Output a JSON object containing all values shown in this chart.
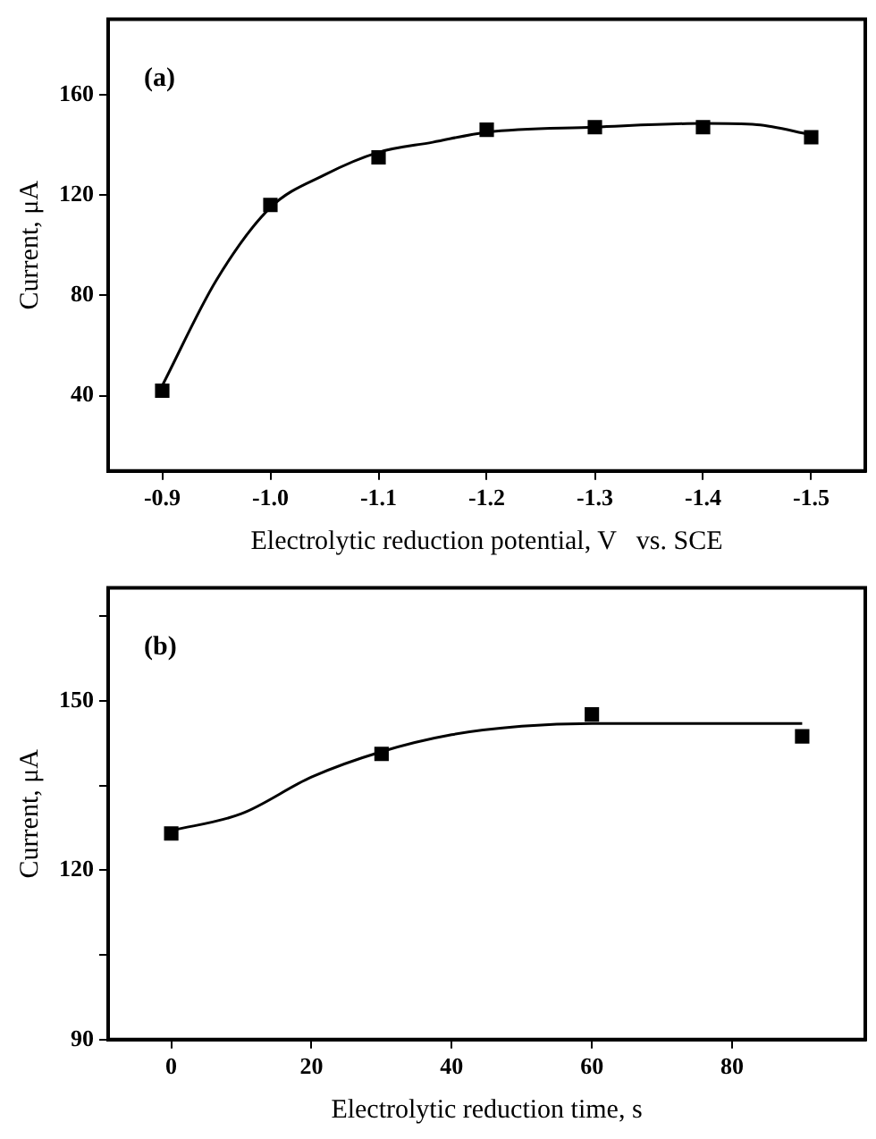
{
  "chart_data": [
    {
      "type": "scatter",
      "xlabel": "Electrolytic reduction potential, V   vs. SCE",
      "ylabel": "Current, μA",
      "annotations": [
        "(a)"
      ],
      "xlim": [
        -0.85,
        -1.55
      ],
      "xticks": [
        -0.9,
        {
          "value": -1,
          "label": "-1.0"
        },
        -1.1,
        -1.2,
        -1.3,
        -1.4,
        -1.5
      ],
      "ylim": [
        10,
        190
      ],
      "yticks": [
        40,
        80,
        120,
        160
      ],
      "grid": false,
      "legend": false,
      "series": [
        {
          "marker": "square",
          "color": "#000000",
          "x": [
            -0.9,
            -1.0,
            -1.1,
            -1.2,
            -1.3,
            -1.4,
            -1.5
          ],
          "values": [
            42,
            116,
            135,
            146,
            147,
            147,
            143
          ]
        },
        {
          "type": "line",
          "marker": "none",
          "line_style": "solid",
          "color": "#000000",
          "x": [
            -0.9,
            -0.95,
            -1.0,
            -1.05,
            -1.1,
            -1.15,
            -1.2,
            -1.3,
            -1.4,
            -1.45,
            -1.5
          ],
          "values": [
            44,
            86,
            115,
            128,
            137,
            141,
            145,
            147,
            148.5,
            148,
            144
          ]
        }
      ]
    },
    {
      "type": "scatter",
      "xlabel": "Electrolytic reduction time, s",
      "ylabel": "Current, μA",
      "annotations": [
        "(b)"
      ],
      "xlim": [
        -9,
        99
      ],
      "xticks": [
        0,
        20,
        40,
        60,
        80
      ],
      "ylim": [
        90,
        170
      ],
      "yticks": [
        90,
        {
          "value": 105,
          "label": null
        },
        120,
        {
          "value": 135,
          "label": null
        },
        150,
        {
          "value": 165,
          "label": null
        }
      ],
      "grid": false,
      "legend": false,
      "series": [
        {
          "marker": "square",
          "color": "#000000",
          "x": [
            0,
            30,
            60,
            90
          ],
          "values": [
            126.5,
            140.6,
            147.6,
            143.7
          ]
        },
        {
          "type": "line",
          "marker": "none",
          "line_style": "solid",
          "color": "#000000",
          "x": [
            0,
            10,
            20,
            30,
            40,
            50,
            60,
            70,
            80,
            90
          ],
          "values": [
            127,
            130,
            136.5,
            141,
            144,
            145.5,
            146,
            146,
            146,
            146
          ]
        }
      ]
    }
  ]
}
